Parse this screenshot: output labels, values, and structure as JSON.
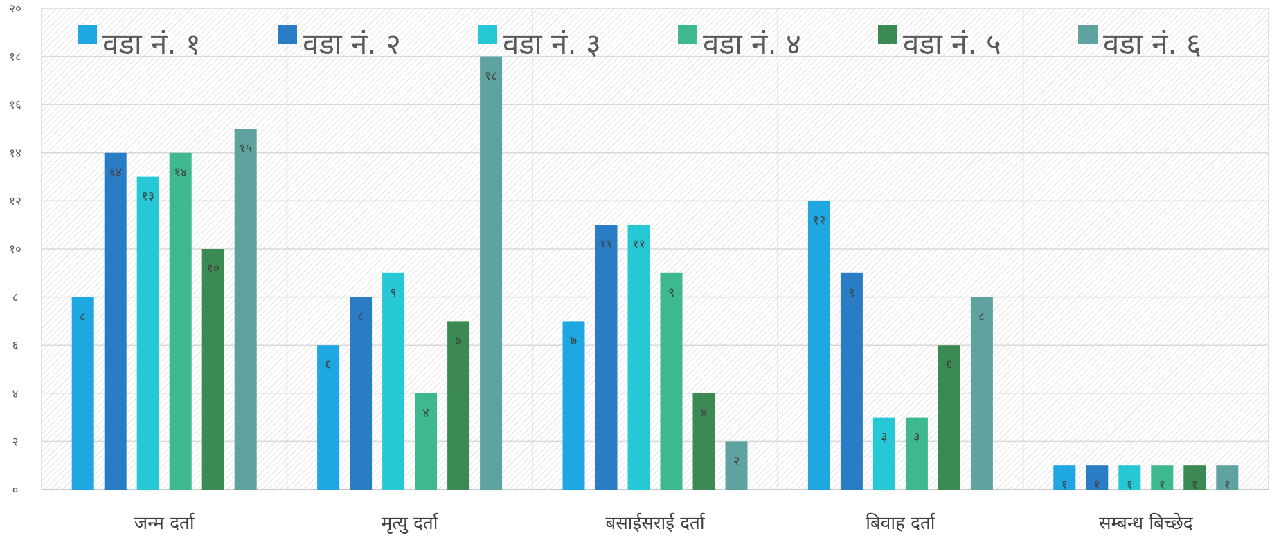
{
  "chart_data": {
    "type": "bar",
    "categories": [
      "जन्म दर्ता",
      "मृत्यु दर्ता",
      "बसाईसराई दर्ता",
      "बिवाह दर्ता",
      "सम्बन्ध बिच्छेद"
    ],
    "series": [
      {
        "name": "वडा नं. १",
        "color": "#1ea7e1",
        "values": [
          8,
          6,
          7,
          12,
          1
        ],
        "labels": [
          "८",
          "६",
          "७",
          "१२",
          "१"
        ]
      },
      {
        "name": "वडा नं. २",
        "color": "#2a7dc5",
        "values": [
          14,
          8,
          11,
          9,
          1
        ],
        "labels": [
          "१४",
          "८",
          "११",
          "९",
          "१"
        ]
      },
      {
        "name": "वडा नं. ३",
        "color": "#27c8d6",
        "values": [
          13,
          9,
          11,
          3,
          1
        ],
        "labels": [
          "१३",
          "९",
          "११",
          "३",
          "१"
        ]
      },
      {
        "name": "वडा नं. ४",
        "color": "#3db88f",
        "values": [
          14,
          4,
          9,
          3,
          1
        ],
        "labels": [
          "१४",
          "४",
          "९",
          "३",
          "१"
        ]
      },
      {
        "name": "वडा नं. ५",
        "color": "#3b8a53",
        "values": [
          10,
          7,
          4,
          6,
          1
        ],
        "labels": [
          "१०",
          "७",
          "४",
          "६",
          "१"
        ]
      },
      {
        "name": "वडा नं. ६",
        "color": "#5ea39f",
        "values": [
          15,
          18,
          2,
          8,
          1
        ],
        "labels": [
          "१५",
          "१८",
          "२",
          "८",
          "१"
        ]
      }
    ],
    "yticks": [
      0,
      2,
      4,
      6,
      8,
      10,
      12,
      14,
      16,
      18,
      20
    ],
    "ytick_labels": [
      "०",
      "२",
      "४",
      "६",
      "८",
      "१०",
      "१२",
      "१४",
      "१६",
      "१८",
      "२०"
    ],
    "ylim": [
      0,
      20
    ],
    "grid": true,
    "legend_position": "top",
    "title": "",
    "xlabel": "",
    "ylabel": ""
  }
}
